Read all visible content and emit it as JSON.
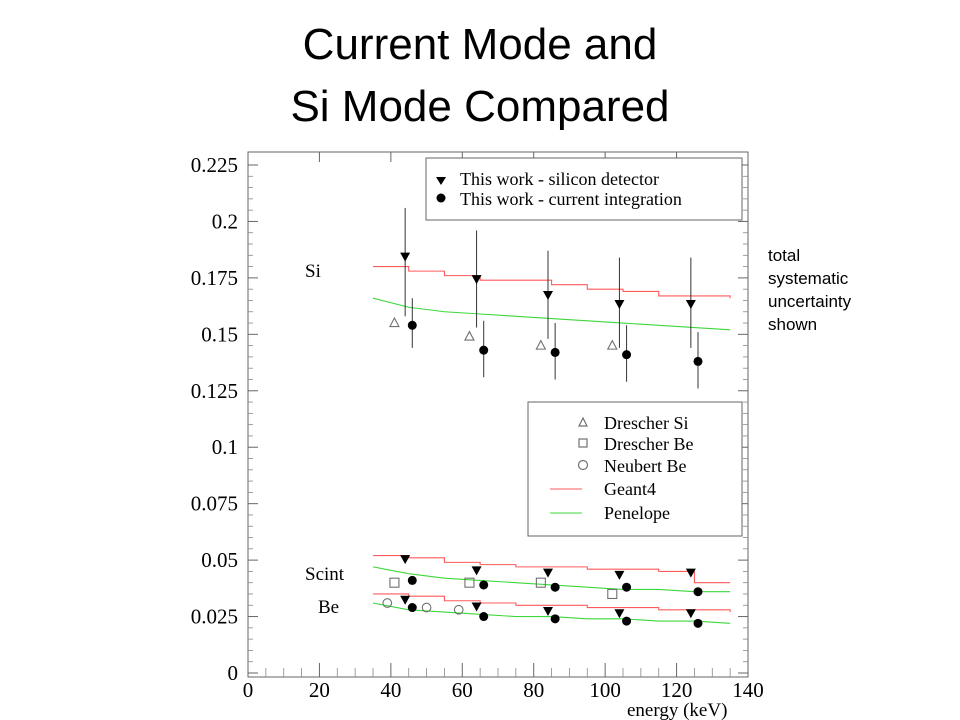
{
  "slide": {
    "title_line1": "Current Mode and",
    "title_line2": "Si Mode Compared",
    "note_lines": [
      "total",
      "systematic",
      "uncertainty",
      "shown"
    ]
  },
  "chart_data": {
    "type": "scatter",
    "xlabel": "energy (keV)",
    "ylabel": "",
    "xlim": [
      0,
      140
    ],
    "ylim": [
      0,
      0.225
    ],
    "x_ticks": [
      "0",
      "20",
      "40",
      "60",
      "80",
      "100",
      "120",
      "140"
    ],
    "y_ticks": [
      "0",
      "0.025",
      "0.05",
      "0.075",
      "0.1",
      "0.125",
      "0.15",
      "0.175",
      "0.2",
      "0.225"
    ],
    "grid": false,
    "annotations": [
      "Si",
      "Scint",
      "Be"
    ],
    "legend_top": {
      "placement": "top-right",
      "entries": [
        "This work - silicon detector",
        "This work - current integration"
      ]
    },
    "legend_bottom": {
      "placement": "center-right",
      "entries": [
        "Drescher Si",
        "Drescher Be",
        "Neubert Be",
        "Geant4",
        "Penelope"
      ]
    },
    "colors": {
      "geant4": "#ff5a5a",
      "penelope": "#3cd83c",
      "markers": "#000000",
      "open_markers": "#707070"
    },
    "series": [
      {
        "name": "This work - silicon detector",
        "marker": "triangle-down",
        "group": "Si",
        "points": [
          [
            44,
            0.184,
            0.206,
            0.158
          ],
          [
            64,
            0.174,
            0.196,
            0.153
          ],
          [
            84,
            0.167,
            0.187,
            0.148
          ],
          [
            104,
            0.163,
            0.184,
            0.144
          ],
          [
            124,
            0.163,
            0.184,
            0.144
          ]
        ]
      },
      {
        "name": "This work - current integration",
        "marker": "circle-filled",
        "group": "Si",
        "points": [
          [
            46,
            0.154,
            0.166,
            0.144
          ],
          [
            66,
            0.143,
            0.156,
            0.131
          ],
          [
            86,
            0.142,
            0.155,
            0.13
          ],
          [
            106,
            0.141,
            0.154,
            0.129
          ],
          [
            126,
            0.138,
            0.151,
            0.126
          ]
        ]
      },
      {
        "name": "This work - silicon detector",
        "marker": "triangle-down",
        "group": "Scint",
        "points": [
          [
            44,
            0.05
          ],
          [
            64,
            0.045
          ],
          [
            84,
            0.044
          ],
          [
            104,
            0.043
          ],
          [
            124,
            0.044
          ]
        ]
      },
      {
        "name": "This work - current integration",
        "marker": "circle-filled",
        "group": "Scint",
        "points": [
          [
            46,
            0.041
          ],
          [
            66,
            0.039
          ],
          [
            86,
            0.038
          ],
          [
            106,
            0.038
          ],
          [
            126,
            0.036
          ]
        ]
      },
      {
        "name": "This work - silicon detector",
        "marker": "triangle-down",
        "group": "Be",
        "points": [
          [
            44,
            0.032
          ],
          [
            64,
            0.029
          ],
          [
            84,
            0.027
          ],
          [
            104,
            0.026
          ],
          [
            124,
            0.026
          ]
        ]
      },
      {
        "name": "This work - current integration",
        "marker": "circle-filled",
        "group": "Be",
        "points": [
          [
            46,
            0.029
          ],
          [
            66,
            0.025
          ],
          [
            86,
            0.024
          ],
          [
            106,
            0.023
          ],
          [
            126,
            0.022
          ]
        ]
      },
      {
        "name": "Drescher Si",
        "marker": "triangle-open",
        "points": [
          [
            41,
            0.155
          ],
          [
            62,
            0.149
          ],
          [
            82,
            0.145
          ],
          [
            102,
            0.145
          ]
        ]
      },
      {
        "name": "Drescher Be",
        "marker": "square-open",
        "points": [
          [
            41,
            0.04
          ],
          [
            62,
            0.04
          ],
          [
            82,
            0.04
          ],
          [
            102,
            0.035
          ]
        ]
      },
      {
        "name": "Neubert Be",
        "marker": "circle-open",
        "points": [
          [
            39,
            0.031
          ],
          [
            50,
            0.029
          ],
          [
            59,
            0.028
          ]
        ]
      },
      {
        "name": "Geant4",
        "line": true,
        "group": "Si",
        "points": [
          [
            35,
            0.18
          ],
          [
            45,
            0.178
          ],
          [
            55,
            0.176
          ],
          [
            65,
            0.174
          ],
          [
            75,
            0.174
          ],
          [
            85,
            0.172
          ],
          [
            95,
            0.17
          ],
          [
            105,
            0.169
          ],
          [
            115,
            0.167
          ],
          [
            125,
            0.167
          ],
          [
            135,
            0.166
          ]
        ]
      },
      {
        "name": "Penelope",
        "line": true,
        "group": "Si",
        "points": [
          [
            35,
            0.166
          ],
          [
            45,
            0.162
          ],
          [
            55,
            0.16
          ],
          [
            65,
            0.159
          ],
          [
            75,
            0.158
          ],
          [
            85,
            0.157
          ],
          [
            95,
            0.156
          ],
          [
            105,
            0.155
          ],
          [
            115,
            0.154
          ],
          [
            125,
            0.153
          ],
          [
            135,
            0.152
          ]
        ]
      },
      {
        "name": "Geant4",
        "line": true,
        "group": "Scint",
        "points": [
          [
            35,
            0.052
          ],
          [
            45,
            0.051
          ],
          [
            55,
            0.049
          ],
          [
            65,
            0.048
          ],
          [
            75,
            0.047
          ],
          [
            85,
            0.047
          ],
          [
            95,
            0.046
          ],
          [
            105,
            0.046
          ],
          [
            115,
            0.045
          ],
          [
            125,
            0.04
          ],
          [
            135,
            0.04
          ]
        ]
      },
      {
        "name": "Penelope",
        "line": true,
        "group": "Scint",
        "points": [
          [
            35,
            0.047
          ],
          [
            45,
            0.044
          ],
          [
            55,
            0.042
          ],
          [
            65,
            0.041
          ],
          [
            75,
            0.04
          ],
          [
            85,
            0.039
          ],
          [
            95,
            0.038
          ],
          [
            105,
            0.037
          ],
          [
            115,
            0.037
          ],
          [
            125,
            0.036
          ],
          [
            135,
            0.036
          ]
        ]
      },
      {
        "name": "Geant4",
        "line": true,
        "group": "Be",
        "points": [
          [
            35,
            0.035
          ],
          [
            45,
            0.034
          ],
          [
            55,
            0.032
          ],
          [
            65,
            0.031
          ],
          [
            75,
            0.03
          ],
          [
            85,
            0.03
          ],
          [
            95,
            0.029
          ],
          [
            105,
            0.029
          ],
          [
            115,
            0.028
          ],
          [
            125,
            0.028
          ],
          [
            135,
            0.027
          ]
        ]
      },
      {
        "name": "Penelope",
        "line": true,
        "group": "Be",
        "points": [
          [
            35,
            0.031
          ],
          [
            45,
            0.028
          ],
          [
            55,
            0.027
          ],
          [
            65,
            0.026
          ],
          [
            75,
            0.025
          ],
          [
            85,
            0.025
          ],
          [
            95,
            0.024
          ],
          [
            105,
            0.024
          ],
          [
            115,
            0.023
          ],
          [
            125,
            0.023
          ],
          [
            135,
            0.022
          ]
        ]
      }
    ]
  }
}
